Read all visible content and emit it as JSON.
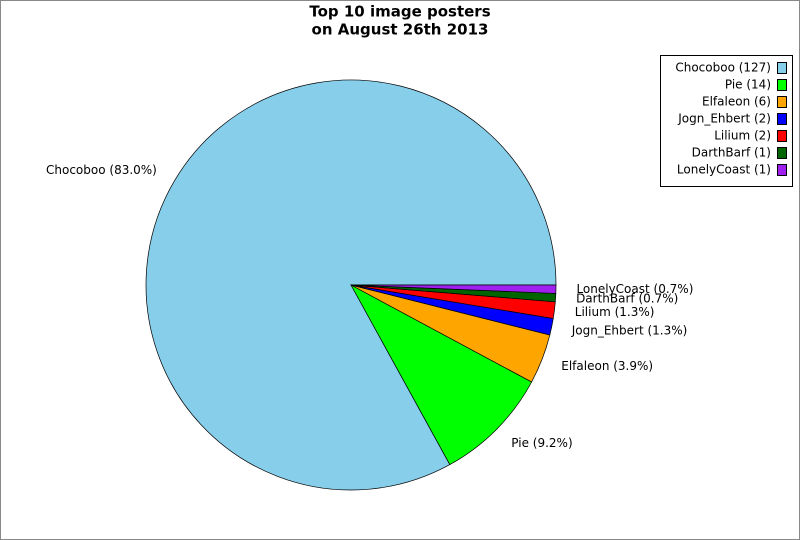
{
  "chart_data": {
    "type": "pie",
    "title": [
      "Top 10 image posters",
      "on August 26th 2013"
    ],
    "values": [
      127,
      14,
      6,
      2,
      2,
      1,
      1
    ],
    "slice_labels": [
      "Chocoboo (83.0%)",
      "Pie (9.2%)",
      "Elfaleon (3.9%)",
      "Jogn_Ehbert (1.3%)",
      "Lilium (1.3%)",
      "DarthBarf (0.7%)",
      "LonelyCoast (0.7%)"
    ],
    "legend_labels": [
      "Chocoboo (127)",
      "Pie (14)",
      "Elfaleon (6)",
      "Jogn_Ehbert (2)",
      "Lilium (2)",
      "DarthBarf (1)",
      "LonelyCoast (1)"
    ],
    "colors": [
      "#87ceeb",
      "#00ff00",
      "#ffa500",
      "#0000ff",
      "#ff0000",
      "#006400",
      "#a020f0"
    ],
    "legend": "top-right"
  }
}
